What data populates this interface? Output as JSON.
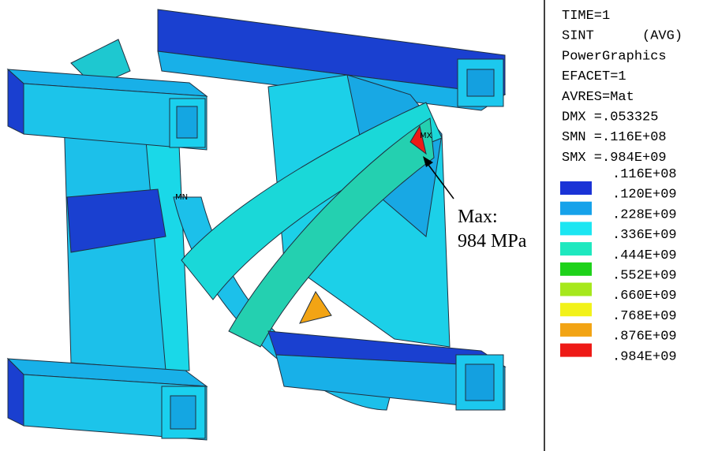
{
  "info": [
    "TIME=1",
    "SINT      (AVG)",
    "PowerGraphics",
    "EFACET=1",
    "AVRES=Mat",
    "DMX =.053325",
    "SMN =.116E+08",
    "SMX =.984E+09"
  ],
  "legend": {
    "labels": [
      ".116E+08",
      ".120E+09",
      ".228E+09",
      ".336E+09",
      ".444E+09",
      ".552E+09",
      ".660E+09",
      ".768E+09",
      ".876E+09",
      ".984E+09"
    ],
    "colors": [
      "#1a33d6",
      "#16a2ea",
      "#1ce6f2",
      "#1ee8bf",
      "#1ed21a",
      "#a6e81c",
      "#f2f21a",
      "#f2a414",
      "#ee1a16"
    ]
  },
  "model": {
    "max_label": "MX",
    "min_label": "MN",
    "annotation": [
      "Max:",
      "984 MPa"
    ]
  }
}
